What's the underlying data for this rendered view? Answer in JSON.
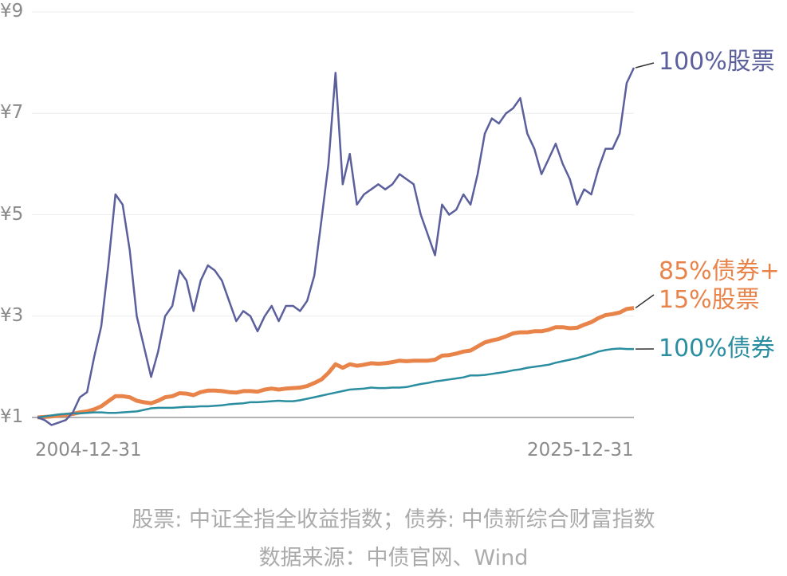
{
  "chart_data": {
    "type": "line",
    "x": [
      "2004-12-31",
      "2005-03-31",
      "2005-06-30",
      "2005-09-30",
      "2005-12-31",
      "2006-03-31",
      "2006-06-30",
      "2006-09-30",
      "2006-12-31",
      "2007-03-31",
      "2007-06-30",
      "2007-09-30",
      "2007-12-31",
      "2008-03-31",
      "2008-06-30",
      "2008-09-30",
      "2008-12-31",
      "2009-03-31",
      "2009-06-30",
      "2009-09-30",
      "2009-12-31",
      "2010-03-31",
      "2010-06-30",
      "2010-09-30",
      "2010-12-31",
      "2011-03-31",
      "2011-06-30",
      "2011-09-30",
      "2011-12-31",
      "2012-03-31",
      "2012-06-30",
      "2012-09-30",
      "2012-12-31",
      "2013-03-31",
      "2013-06-30",
      "2013-09-30",
      "2013-12-31",
      "2014-03-31",
      "2014-06-30",
      "2014-09-30",
      "2014-12-31",
      "2015-03-31",
      "2015-06-30",
      "2015-09-30",
      "2015-12-31",
      "2016-03-31",
      "2016-06-30",
      "2016-09-30",
      "2016-12-31",
      "2017-03-31",
      "2017-06-30",
      "2017-09-30",
      "2017-12-31",
      "2018-03-31",
      "2018-06-30",
      "2018-09-30",
      "2018-12-31",
      "2019-03-31",
      "2019-06-30",
      "2019-09-30",
      "2019-12-31",
      "2020-03-31",
      "2020-06-30",
      "2020-09-30",
      "2020-12-31",
      "2021-03-31",
      "2021-06-30",
      "2021-09-30",
      "2021-12-31",
      "2022-03-31",
      "2022-06-30",
      "2022-09-30",
      "2022-12-31",
      "2023-03-31",
      "2023-06-30",
      "2023-09-30",
      "2023-12-31",
      "2024-03-31",
      "2024-06-30",
      "2024-09-30",
      "2024-12-31",
      "2025-03-31",
      "2025-06-30",
      "2025-09-30",
      "2025-12-31"
    ],
    "xlim": [
      "2004-12-31",
      "2025-12-31"
    ],
    "xticks": [
      "2004-12-31",
      "2025-12-31"
    ],
    "ylim": [
      1,
      9
    ],
    "yticks": [
      {
        "value": 1,
        "label": "¥1"
      },
      {
        "value": 3,
        "label": "¥3"
      },
      {
        "value": 5,
        "label": "¥5"
      },
      {
        "value": 7,
        "label": "¥7"
      },
      {
        "value": 9,
        "label": "¥9"
      }
    ],
    "grid": true,
    "series": [
      {
        "name": "100%股票",
        "color": "#5b5f9c",
        "values": [
          1.0,
          0.95,
          0.85,
          0.9,
          0.95,
          1.1,
          1.4,
          1.5,
          2.2,
          2.8,
          4.0,
          5.4,
          5.2,
          4.3,
          3.0,
          2.4,
          1.8,
          2.3,
          3.0,
          3.2,
          3.9,
          3.7,
          3.1,
          3.7,
          4.0,
          3.9,
          3.7,
          3.3,
          2.9,
          3.1,
          3.0,
          2.7,
          3.0,
          3.2,
          2.9,
          3.2,
          3.2,
          3.1,
          3.3,
          3.8,
          4.9,
          6.0,
          7.8,
          5.6,
          6.2,
          5.2,
          5.4,
          5.5,
          5.6,
          5.5,
          5.6,
          5.8,
          5.7,
          5.6,
          5.0,
          4.6,
          4.2,
          5.2,
          5.0,
          5.1,
          5.4,
          5.2,
          5.8,
          6.6,
          6.9,
          6.8,
          7.0,
          7.1,
          7.3,
          6.6,
          6.3,
          5.8,
          6.1,
          6.4,
          6.0,
          5.7,
          5.2,
          5.5,
          5.4,
          5.9,
          6.3,
          6.3,
          6.6,
          7.6,
          7.9
        ]
      },
      {
        "name": "85%债券+\n15%股票",
        "color": "#e8844a",
        "values": [
          1.0,
          1.01,
          1.02,
          1.04,
          1.05,
          1.07,
          1.1,
          1.12,
          1.16,
          1.22,
          1.32,
          1.42,
          1.42,
          1.4,
          1.33,
          1.3,
          1.28,
          1.33,
          1.4,
          1.42,
          1.48,
          1.47,
          1.44,
          1.5,
          1.53,
          1.53,
          1.52,
          1.5,
          1.49,
          1.52,
          1.52,
          1.51,
          1.55,
          1.57,
          1.55,
          1.57,
          1.58,
          1.59,
          1.62,
          1.68,
          1.75,
          1.88,
          2.05,
          1.98,
          2.05,
          2.02,
          2.04,
          2.07,
          2.06,
          2.07,
          2.09,
          2.12,
          2.11,
          2.12,
          2.12,
          2.12,
          2.14,
          2.22,
          2.23,
          2.26,
          2.3,
          2.32,
          2.4,
          2.48,
          2.52,
          2.55,
          2.6,
          2.66,
          2.68,
          2.68,
          2.7,
          2.7,
          2.73,
          2.78,
          2.78,
          2.76,
          2.77,
          2.83,
          2.88,
          2.96,
          3.02,
          3.04,
          3.07,
          3.14,
          3.16
        ]
      },
      {
        "name": "100%债券",
        "color": "#2a8ea0",
        "values": [
          1.0,
          1.02,
          1.04,
          1.06,
          1.07,
          1.08,
          1.08,
          1.09,
          1.1,
          1.1,
          1.09,
          1.09,
          1.1,
          1.11,
          1.12,
          1.15,
          1.18,
          1.19,
          1.19,
          1.19,
          1.2,
          1.21,
          1.21,
          1.22,
          1.22,
          1.23,
          1.24,
          1.26,
          1.27,
          1.28,
          1.3,
          1.3,
          1.31,
          1.32,
          1.33,
          1.32,
          1.32,
          1.34,
          1.37,
          1.4,
          1.43,
          1.46,
          1.49,
          1.52,
          1.55,
          1.56,
          1.57,
          1.59,
          1.58,
          1.58,
          1.59,
          1.59,
          1.6,
          1.63,
          1.66,
          1.68,
          1.71,
          1.73,
          1.75,
          1.77,
          1.79,
          1.83,
          1.83,
          1.84,
          1.86,
          1.88,
          1.9,
          1.93,
          1.95,
          1.98,
          2.0,
          2.02,
          2.04,
          2.08,
          2.11,
          2.14,
          2.17,
          2.21,
          2.25,
          2.3,
          2.33,
          2.35,
          2.36,
          2.35,
          2.35
        ]
      }
    ],
    "footnotes": [
      "股票: 中证全指全收益指数；债券: 中债新综合财富指数",
      "数据来源：中债官网、Wind"
    ]
  }
}
